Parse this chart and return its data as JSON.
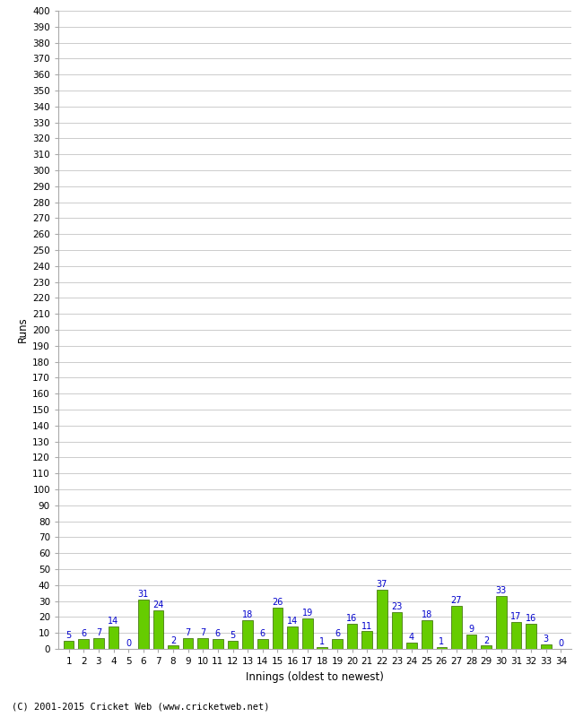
{
  "innings": [
    1,
    2,
    3,
    4,
    5,
    6,
    7,
    8,
    9,
    10,
    11,
    12,
    13,
    14,
    15,
    16,
    17,
    18,
    19,
    20,
    21,
    22,
    23,
    24,
    25,
    26,
    27,
    28,
    29,
    30,
    31,
    32,
    33,
    34
  ],
  "runs": [
    5,
    6,
    7,
    14,
    0,
    31,
    24,
    2,
    7,
    7,
    6,
    5,
    18,
    6,
    26,
    14,
    19,
    1,
    6,
    16,
    11,
    37,
    23,
    4,
    18,
    1,
    27,
    9,
    2,
    33,
    17,
    16,
    3,
    0
  ],
  "bar_color": "#66cc00",
  "bar_edge_color": "#336600",
  "label_color": "#0000cc",
  "ylabel": "Runs",
  "xlabel": "Innings (oldest to newest)",
  "ylim_max": 400,
  "ytick_step": 10,
  "background_color": "#ffffff",
  "grid_color": "#cccccc",
  "footer": "(C) 2001-2015 Cricket Web (www.cricketweb.net)"
}
